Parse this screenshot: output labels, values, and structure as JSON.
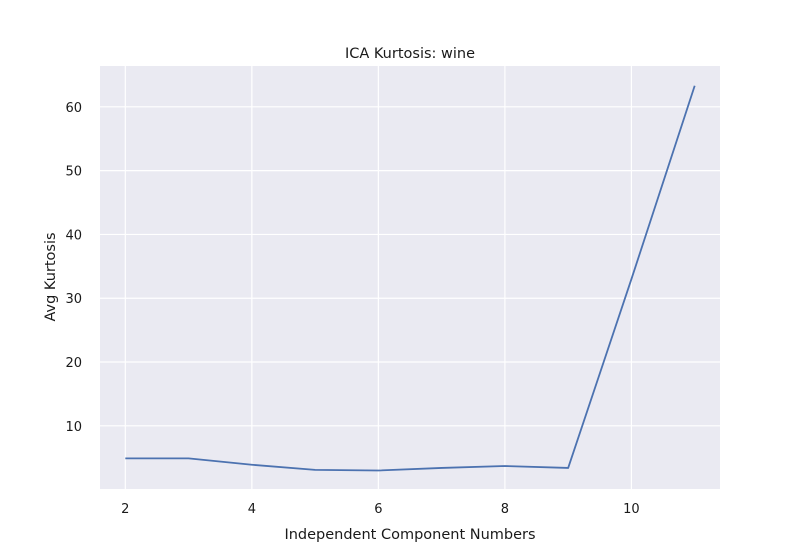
{
  "chart_data": {
    "type": "line",
    "title": "ICA Kurtosis: wine",
    "xlabel": "Independent Component Numbers",
    "ylabel": "Avg Kurtosis",
    "x": [
      2,
      3,
      4,
      5,
      6,
      7,
      8,
      9,
      10,
      11
    ],
    "series": [
      {
        "values": [
          4.9,
          4.9,
          3.9,
          3.1,
          3.0,
          3.4,
          3.7,
          3.4,
          33.0,
          63.3
        ]
      }
    ],
    "xticks": [
      2,
      4,
      6,
      8,
      10
    ],
    "yticks": [
      10,
      20,
      30,
      40,
      50,
      60
    ],
    "xlim": [
      1.6,
      11.4
    ],
    "ylim": [
      0.1,
      66.4
    ],
    "grid": true,
    "line_color": "#4c72b0",
    "background_color": "#eaeaf2"
  }
}
